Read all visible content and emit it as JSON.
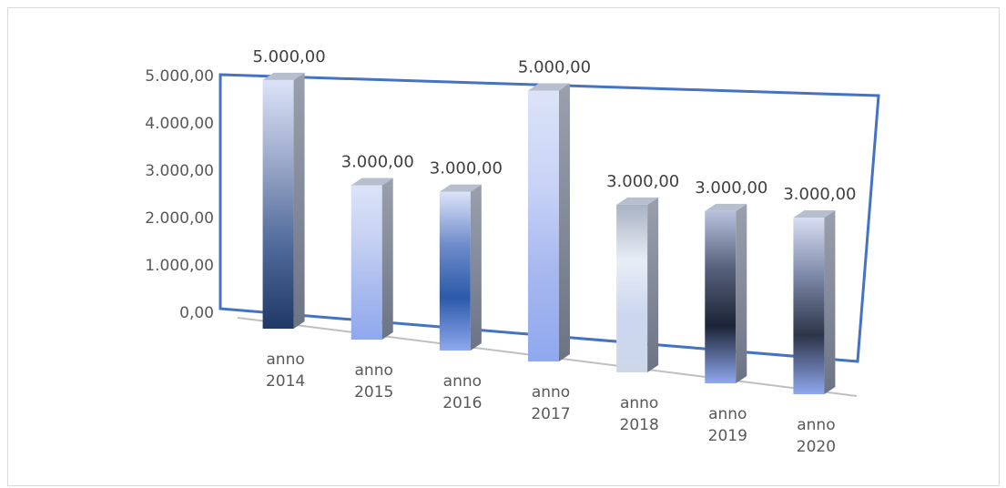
{
  "chart_data": {
    "type": "bar",
    "title": "",
    "xlabel": "",
    "ylabel": "",
    "categories": [
      [
        "anno",
        "2014"
      ],
      [
        "anno",
        "2015"
      ],
      [
        "anno",
        "2016"
      ],
      [
        "anno",
        "2017"
      ],
      [
        "anno",
        "2018"
      ],
      [
        "anno",
        "2019"
      ],
      [
        "anno",
        "2020"
      ]
    ],
    "values": [
      5000,
      3000,
      3000,
      5000,
      3000,
      3000,
      3000
    ],
    "data_labels": [
      "5.000,00",
      "3.000,00",
      "3.000,00",
      "5.000,00",
      "3.000,00",
      "3.000,00",
      "3.000,00"
    ],
    "y_ticks": [
      "0,00",
      "1.000,00",
      "2.000,00",
      "3.000,00",
      "4.000,00",
      "5.000,00"
    ],
    "ylim": [
      0,
      5000
    ],
    "grid": false,
    "legend": "none",
    "colors": {
      "frame": "#4472c4",
      "axis": "#bfbfbf",
      "tick_text": "#595959",
      "label_text": "#404040",
      "bar_dark": "#1f3864",
      "bar_light": "#dce3f8",
      "bar_mid": "#8fa8ee"
    }
  }
}
